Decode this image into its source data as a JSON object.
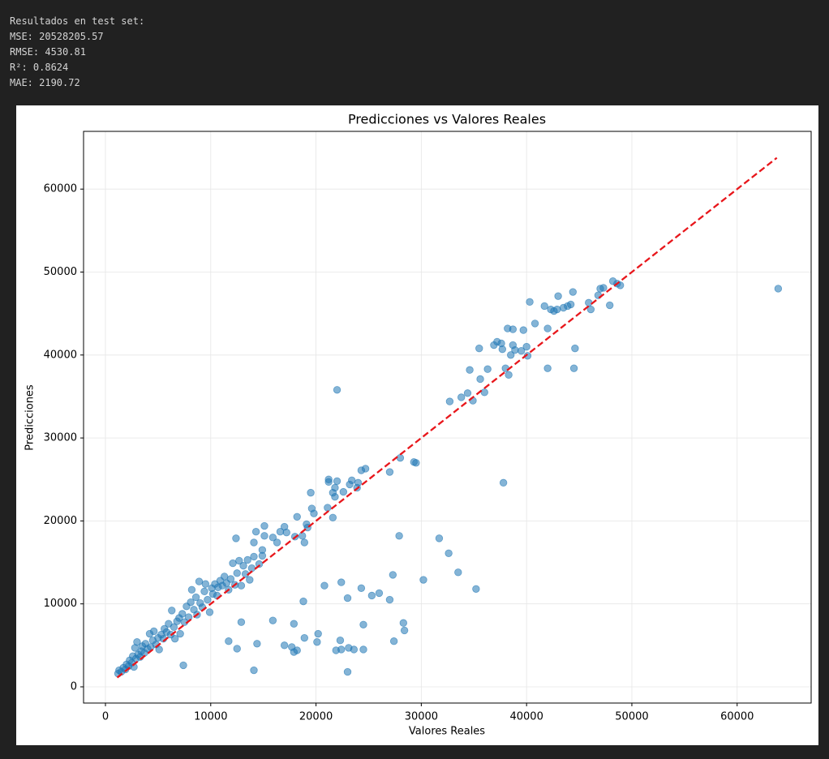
{
  "output_text": [
    "Resultados en test set:",
    "MSE: 20528205.57",
    "RMSE: 4530.81",
    "R²: 0.8624",
    "MAE: 2190.72"
  ],
  "chart_data": {
    "type": "scatter",
    "title": "Predicciones vs Valores Reales",
    "x_label": "Valores Reales",
    "y_label": "Predicciones",
    "color": "#1f77b4",
    "grid": true,
    "xlim": [
      -2080,
      67030
    ],
    "ylim": [
      -1955,
      66960
    ],
    "xticks": [
      0,
      10000,
      20000,
      30000,
      40000,
      50000,
      60000
    ],
    "yticks": [
      0,
      10000,
      20000,
      30000,
      40000,
      50000,
      60000
    ],
    "x": [
      1200,
      1300,
      1500,
      1700,
      1900,
      2000,
      2200,
      2300,
      2500,
      2600,
      2700,
      2800,
      2900,
      3000,
      3100,
      3300,
      3400,
      3500,
      3700,
      3800,
      4000,
      4200,
      4300,
      4500,
      4600,
      4800,
      5000,
      5100,
      5300,
      5500,
      5600,
      5800,
      6000,
      6200,
      6300,
      6500,
      6600,
      6800,
      7000,
      7100,
      7300,
      7500,
      7700,
      7900,
      8100,
      8200,
      8400,
      8600,
      8700,
      8900,
      9000,
      9200,
      9400,
      9500,
      9700,
      9900,
      10100,
      10200,
      10400,
      10600,
      10700,
      10900,
      11100,
      11300,
      11500,
      11700,
      11900,
      12100,
      12300,
      12500,
      12700,
      12900,
      13100,
      13300,
      13500,
      13700,
      13900,
      14100,
      14600,
      48900,
      48600,
      48200,
      47900,
      47300,
      47000,
      46800,
      46100,
      45900,
      44600,
      44500,
      44400,
      44200,
      43900,
      43500,
      43000,
      42900,
      42600,
      42300,
      42000,
      42000,
      41700,
      40800,
      40300,
      40000,
      40100,
      39700,
      39500,
      38900,
      38700,
      38700,
      38500,
      38300,
      38200,
      38000,
      37700,
      37600,
      37200,
      36900,
      36300,
      36000,
      35600,
      35500,
      34900,
      34600,
      34400,
      33800,
      32700,
      37800,
      29500,
      29300,
      28000,
      27000,
      24700,
      24300,
      23900,
      24000,
      23400,
      23200,
      22600,
      22000,
      21800,
      21800,
      21600,
      21200,
      21200,
      21100,
      21600,
      22000,
      19500,
      19600,
      19800,
      19100,
      19200,
      18900,
      18700,
      18200,
      18000,
      17200,
      17000,
      16600,
      16300,
      15900,
      15100,
      15100,
      14900,
      14900,
      14300,
      14100,
      12400,
      35200,
      33500,
      32600,
      31700,
      30200,
      28400,
      28300,
      27900,
      27400,
      27300,
      27000,
      26000,
      25300,
      24500,
      24500,
      24300,
      23600,
      23100,
      23000,
      23000,
      22400,
      22400,
      22300,
      21900,
      20800,
      20200,
      20100,
      18900,
      18800,
      18200,
      17900,
      17900,
      17700,
      17000,
      15900,
      14400,
      14100,
      12900,
      12500,
      11700,
      7400,
      63900
    ],
    "values": [
      1600,
      2000,
      1800,
      2300,
      2100,
      2700,
      2500,
      3200,
      2900,
      3700,
      2400,
      4700,
      3400,
      5400,
      3900,
      3600,
      4300,
      4900,
      4100,
      5200,
      4600,
      6400,
      4800,
      5600,
      6700,
      5100,
      5900,
      4500,
      6300,
      5800,
      7000,
      6600,
      7600,
      6300,
      9200,
      7200,
      5800,
      7900,
      8300,
      6400,
      8800,
      7800,
      9700,
      8400,
      10200,
      11700,
      9300,
      10800,
      8700,
      12700,
      10100,
      9600,
      11500,
      12400,
      10500,
      9000,
      11900,
      11200,
      12400,
      11000,
      12000,
      12800,
      12200,
      13300,
      12500,
      11700,
      13000,
      14900,
      12300,
      13700,
      15200,
      12200,
      14600,
      13600,
      15300,
      12900,
      14300,
      15700,
      14800,
      48400,
      48600,
      48900,
      46000,
      48100,
      48000,
      47200,
      45500,
      46300,
      40800,
      38400,
      47600,
      46100,
      45900,
      45700,
      47100,
      45500,
      45300,
      45500,
      43200,
      38400,
      45900,
      43800,
      46400,
      41000,
      39900,
      43000,
      40500,
      40600,
      41200,
      43100,
      40000,
      37600,
      43200,
      38400,
      40700,
      41400,
      41600,
      41200,
      38300,
      35500,
      37100,
      40800,
      34500,
      38200,
      35400,
      34900,
      34400,
      24600,
      27000,
      27100,
      27600,
      25900,
      26300,
      26100,
      24000,
      24600,
      24900,
      24400,
      23500,
      24800,
      22900,
      24000,
      23400,
      25000,
      24700,
      21600,
      20400,
      35800,
      23400,
      21500,
      20900,
      19600,
      19200,
      17400,
      18200,
      20500,
      18100,
      18600,
      19300,
      18700,
      17400,
      18000,
      19400,
      18200,
      16500,
      15800,
      18700,
      17400,
      17900,
      11800,
      13800,
      16100,
      17900,
      12900,
      6800,
      7700,
      18200,
      5500,
      13500,
      10500,
      11300,
      11000,
      4500,
      7500,
      11900,
      4500,
      4700,
      10700,
      1800,
      12600,
      4500,
      5600,
      4400,
      12200,
      6400,
      5400,
      5900,
      10300,
      4400,
      4200,
      7600,
      4800,
      5000,
      8000,
      5200,
      2000,
      7800,
      4600,
      5500,
      2600,
      48000
    ],
    "reference_line": {
      "x": [
        1120,
        63770
      ],
      "y": [
        1120,
        63770
      ],
      "color": "#e8161b",
      "style": "dashed"
    }
  }
}
